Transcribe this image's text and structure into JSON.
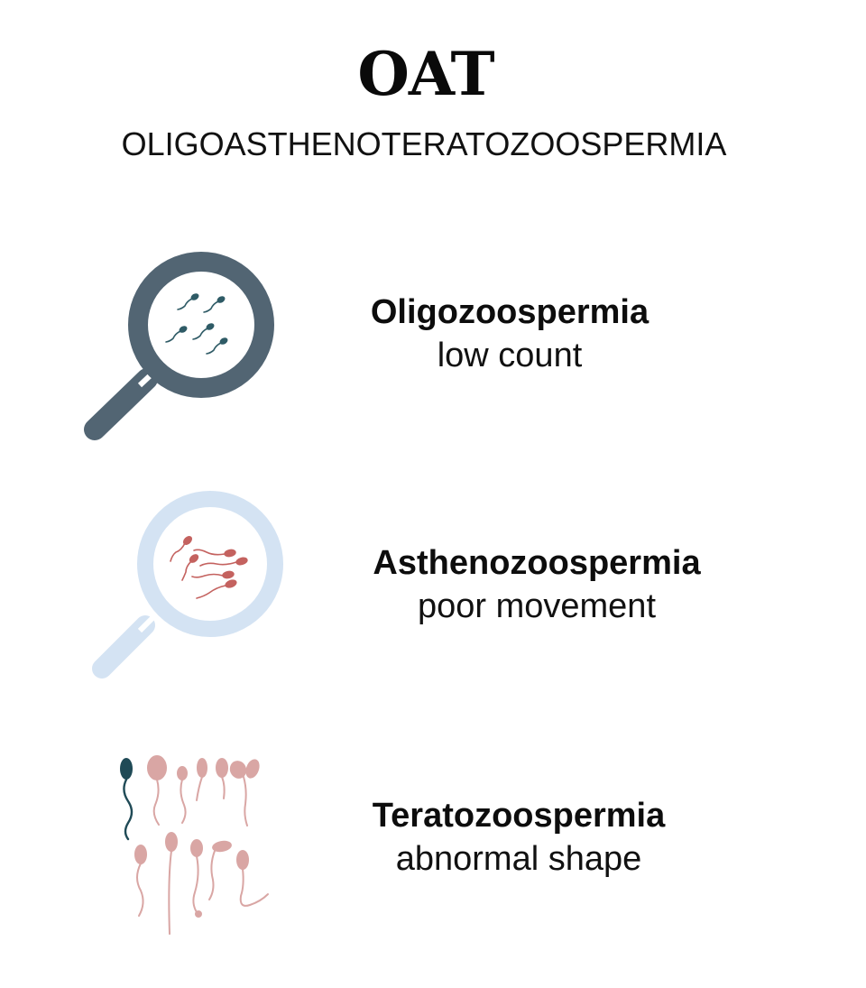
{
  "header": {
    "title": "OAT",
    "subtitle": "OLIGOASTHENOTERATOZOOSPERMIA"
  },
  "rows": [
    {
      "term": "Oligozoospermia",
      "description": "low count",
      "icon": "magnifier-sperm-icon"
    },
    {
      "term": "Asthenozoospermia",
      "description": "poor movement",
      "icon": "magnifier-moving-sperm-icon"
    },
    {
      "term": "Teratozoospermia",
      "description": "abnormal shape",
      "icon": "abnormal-sperm-shapes-icon"
    }
  ],
  "colors": {
    "magnifier_dark": "#526573",
    "sperm_teal": "#2f5b66",
    "magnifier_light": "#d4e3f3",
    "sperm_red": "#c4625f",
    "sperm_pink": "#d9a6a4",
    "sperm_dark_teal": "#1f4a56",
    "text": "#111111"
  }
}
